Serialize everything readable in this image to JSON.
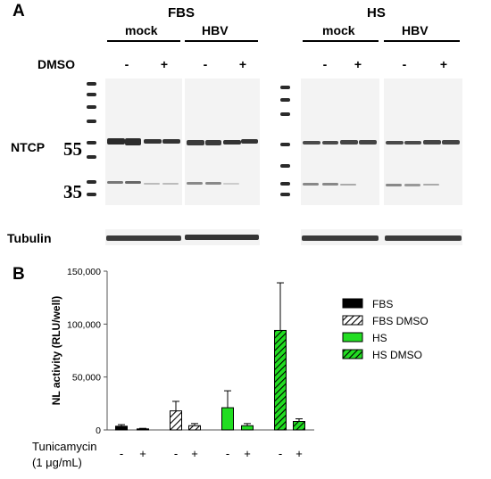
{
  "panel_a": {
    "letter": "A",
    "fbs_label": "FBS",
    "hs_label": "HS",
    "mock_label": "mock",
    "hbv_label": "HBV",
    "dmso_label": "DMSO",
    "minus": "-",
    "plus": "+",
    "ntcp_label": "NTCP",
    "mw_55": "55",
    "mw_35": "35",
    "tubulin_label": "Tubulin"
  },
  "panel_b": {
    "letter": "B",
    "x_label_line1": "Tunicamycin",
    "x_label_line2": "(1 μg/mL)",
    "minus": "-",
    "plus": "+"
  },
  "colors": {
    "fbs": "#000000",
    "hs": "#22dd22"
  },
  "chart_data": {
    "type": "bar",
    "title": "",
    "xlabel": "",
    "ylabel": "NL activity (RLU/well)",
    "ylim": [
      0,
      150000
    ],
    "yticks": [
      0,
      50000,
      100000,
      150000
    ],
    "ytick_labels": [
      "0",
      "50,000",
      "100,000",
      "150,000"
    ],
    "grid": false,
    "legend": "right",
    "categories": [
      "-",
      "+",
      "-",
      "+",
      "-",
      "+",
      "-",
      "+"
    ],
    "series": [
      {
        "name": "FBS",
        "pattern": "solid-black",
        "values": [
          3500,
          1000,
          null,
          null,
          null,
          null,
          null,
          null
        ],
        "errors": [
          1500,
          500,
          null,
          null,
          null,
          null,
          null,
          null
        ]
      },
      {
        "name": "FBS DMSO",
        "pattern": "hatch-white",
        "values": [
          null,
          null,
          18000,
          4000,
          null,
          null,
          null,
          null
        ],
        "errors": [
          null,
          null,
          9000,
          2000,
          null,
          null,
          null,
          null
        ]
      },
      {
        "name": "HS",
        "pattern": "solid-green",
        "values": [
          null,
          null,
          null,
          null,
          21000,
          4000,
          null,
          null
        ],
        "errors": [
          null,
          null,
          null,
          null,
          16000,
          2000,
          null,
          null
        ]
      },
      {
        "name": "HS DMSO",
        "pattern": "hatch-green",
        "values": [
          null,
          null,
          null,
          null,
          null,
          null,
          94000,
          8000
        ],
        "errors": [
          null,
          null,
          null,
          null,
          null,
          null,
          45000,
          2500
        ]
      }
    ]
  }
}
